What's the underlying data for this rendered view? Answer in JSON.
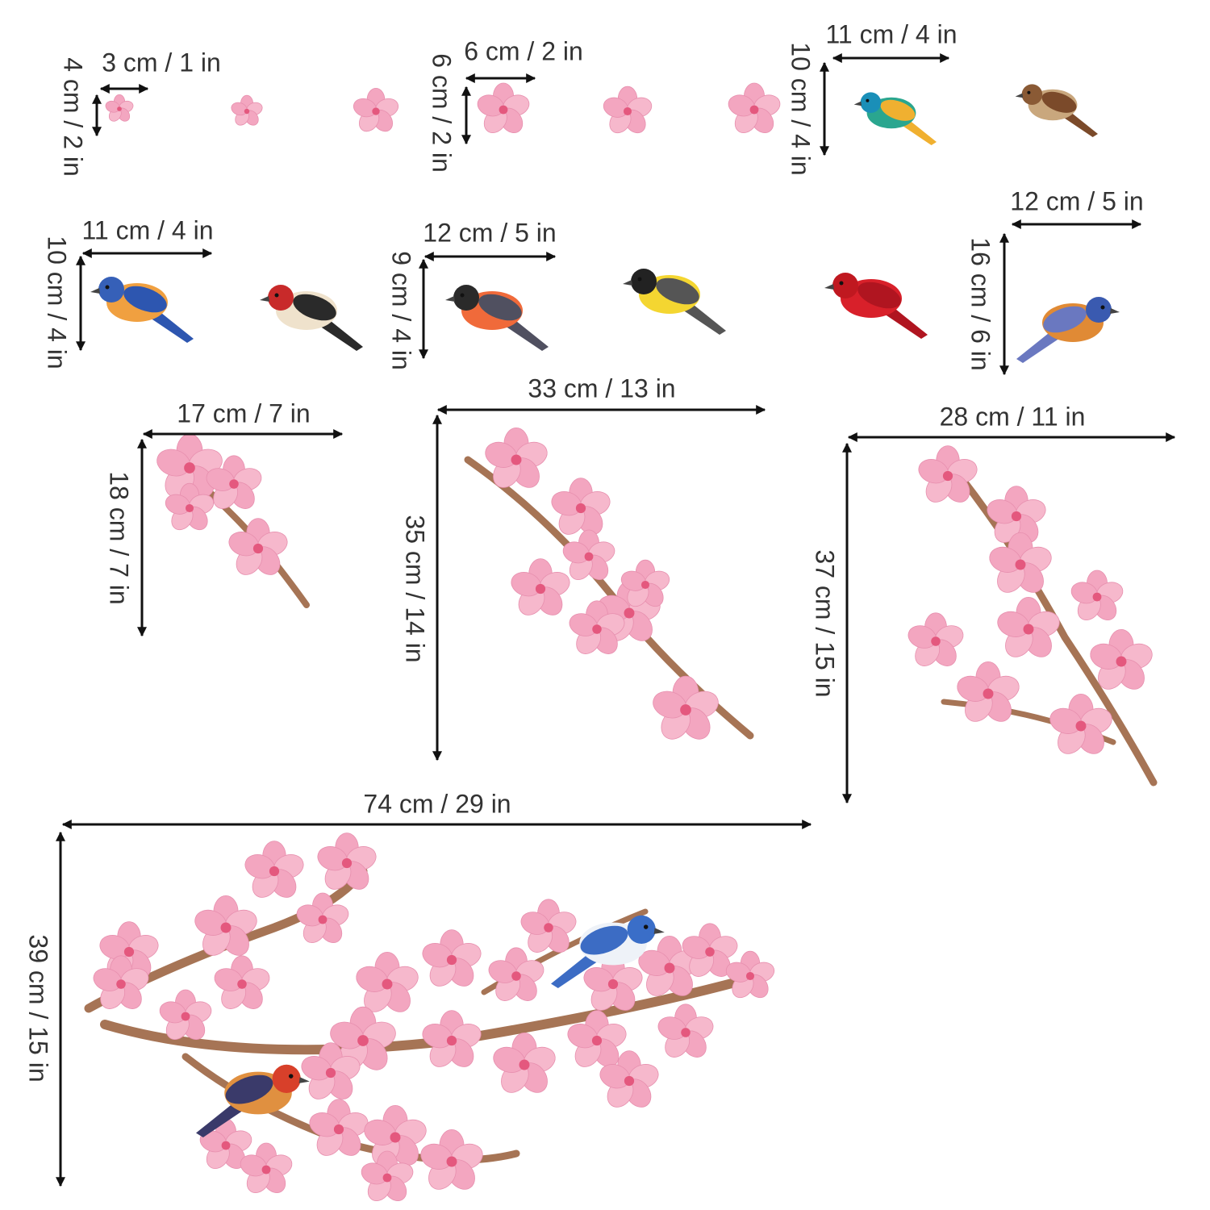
{
  "dimensions": [
    {
      "width": "3 cm / 1 in",
      "height": "4 cm / 2 in"
    },
    {
      "width": "6 cm / 2 in",
      "height": "6 cm / 2 in"
    },
    {
      "width": "11 cm / 4 in",
      "height": "10 cm / 4 in"
    },
    {
      "width": "11 cm / 4 in",
      "height": "10 cm / 4 in"
    },
    {
      "width": "12 cm / 5 in",
      "height": "9 cm / 4 in"
    },
    {
      "width": "12 cm / 5 in",
      "height": "16 cm / 6 in"
    },
    {
      "width": "17 cm / 7 in",
      "height": "18 cm / 7 in"
    },
    {
      "width": "33 cm / 13 in",
      "height": "35 cm / 14 in"
    },
    {
      "width": "28 cm / 11 in",
      "height": "37 cm / 15 in"
    },
    {
      "width": "74 cm / 29 in",
      "height": "39 cm / 15 in"
    }
  ]
}
